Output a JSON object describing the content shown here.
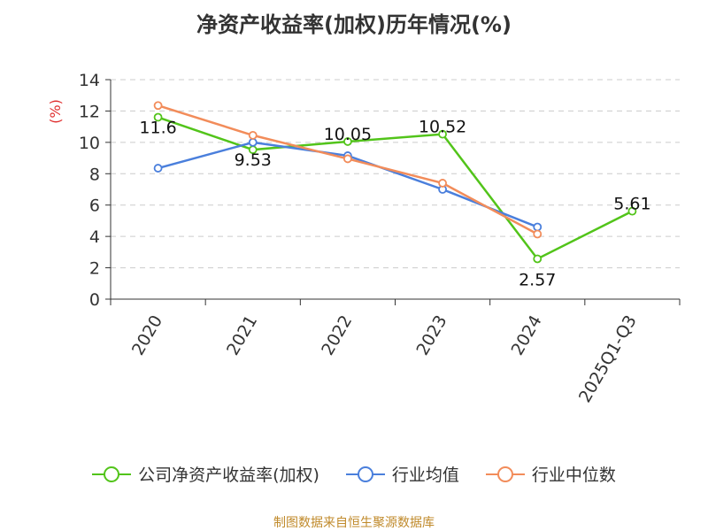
{
  "title": "净资产收益率(加权)历年情况(%)",
  "source": "制图数据来自恒生聚源数据库",
  "unit_label": "(%)",
  "chart_data": {
    "type": "line",
    "categories": [
      "2020",
      "2021",
      "2022",
      "2023",
      "2024",
      "2025Q1-Q3"
    ],
    "ylim": [
      0,
      14
    ],
    "yticks": [
      0,
      2,
      4,
      6,
      8,
      10,
      12,
      14
    ],
    "grid": true,
    "legend_position": "bottom",
    "series": [
      {
        "name": "公司净资产收益率(加权)",
        "color": "#52c41a",
        "values": [
          11.6,
          9.53,
          10.05,
          10.52,
          2.57,
          5.61
        ],
        "labels": true
      },
      {
        "name": "行业均值",
        "color": "#4a7fdc",
        "values": [
          8.35,
          10.0,
          9.15,
          7.0,
          4.6,
          null
        ],
        "labels": false
      },
      {
        "name": "行业中位数",
        "color": "#f28c5a",
        "values": [
          12.35,
          10.45,
          8.95,
          7.4,
          4.15,
          null
        ],
        "labels": false
      }
    ]
  }
}
